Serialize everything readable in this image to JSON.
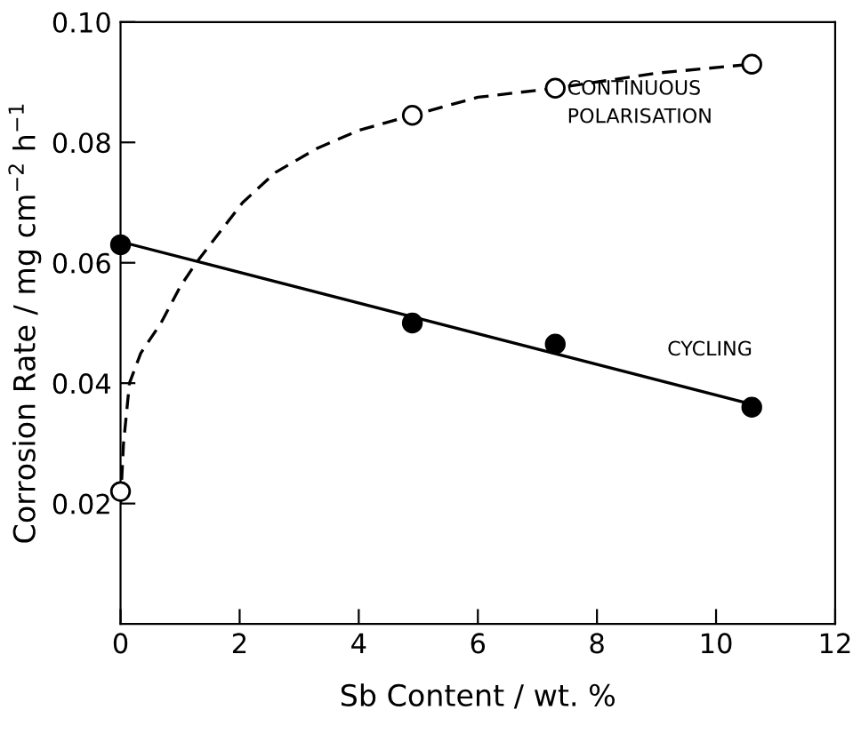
{
  "chart_data": {
    "type": "scatter",
    "xlabel": "Sb Content / wt. %",
    "ylabel": "Corrosion Rate / mg cm$^{−2}$ h$^{−1}$",
    "xlim": [
      0,
      12
    ],
    "xticks": [
      0,
      2,
      4,
      6,
      8,
      10,
      12
    ],
    "ylim": [
      0,
      0.1
    ],
    "yticks": [
      0.02,
      0.04,
      0.06,
      0.08,
      {
        "value": 0.1,
        "label": "0.10"
      }
    ],
    "grid": false,
    "legend": false,
    "series": [
      {
        "type": "line",
        "line_style": "dashed",
        "marker": "none",
        "color": "#000000",
        "x": [
          0,
          0.05,
          0.15,
          0.34,
          0.68,
          1.0,
          1.27,
          2.05,
          2.6,
          3.3,
          4.0,
          4.9,
          6.0,
          7.3,
          9.0,
          10.6
        ],
        "values": [
          0.02,
          0.03,
          0.04,
          0.045,
          0.05,
          0.056,
          0.06,
          0.07,
          0.075,
          0.079,
          0.082,
          0.0845,
          0.0875,
          0.089,
          0.0915,
          0.093
        ]
      },
      {
        "type": "line",
        "line_style": "solid",
        "marker": "none",
        "color": "#000000",
        "x": [
          0,
          10.6
        ],
        "values": [
          0.0635,
          0.0365
        ]
      },
      {
        "marker": "circle",
        "color": "#ffffff",
        "x": [
          0,
          4.9,
          7.3,
          10.6
        ],
        "values": [
          0.022,
          0.0845,
          0.089,
          0.093
        ]
      },
      {
        "marker": "circle",
        "color": "#000000",
        "x": [
          0,
          4.9,
          7.3,
          10.6
        ],
        "values": [
          0.063,
          0.05,
          0.0465,
          0.036
        ]
      }
    ],
    "annotations": [
      "CONTINUOUS\nPOLARISATION",
      "CYCLING"
    ]
  }
}
